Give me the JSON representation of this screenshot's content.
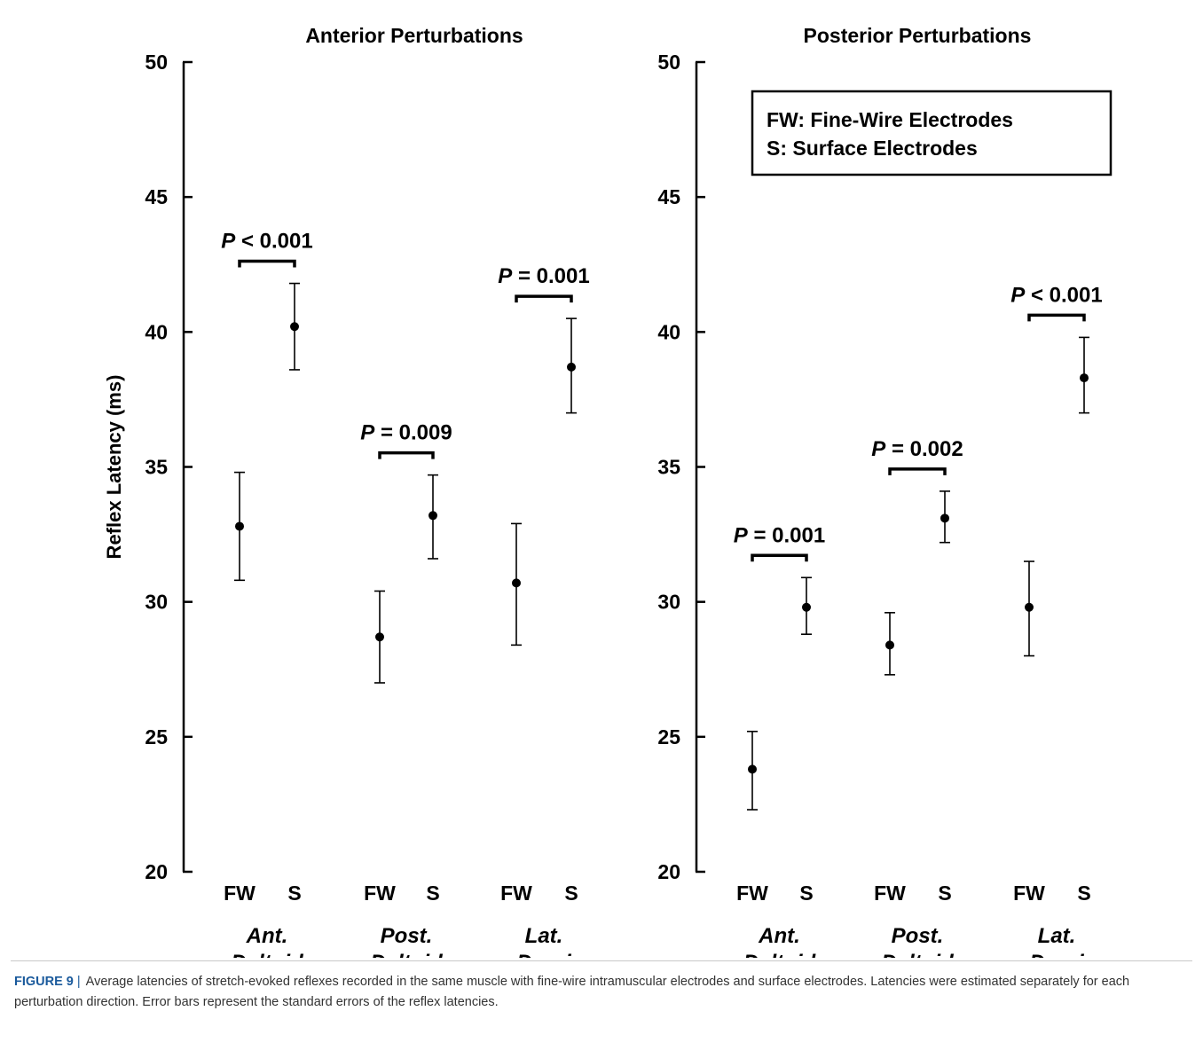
{
  "caption": {
    "label": "FIGURE 9",
    "separator": "|",
    "text": "Average latencies of stretch-evoked reflexes recorded in the same muscle with fine-wire intramuscular electrodes and surface electrodes. Latencies were estimated separately for each perturbation direction. Error bars represent the standard errors of the reflex latencies."
  },
  "chart_data": [
    {
      "type": "scatter",
      "title": "Anterior Perturbations",
      "ylabel": "Reflex Latency (ms)",
      "ylim": [
        20,
        50
      ],
      "yticks": [
        "20",
        "25",
        "30",
        "35",
        "40",
        "45",
        "50"
      ],
      "grid": false,
      "groups": [
        {
          "label": [
            "Ant.",
            "Deltoid"
          ],
          "points": [
            {
              "label": "FW",
              "mean": 32.8,
              "lower": 30.8,
              "upper": 34.8
            },
            {
              "label": "S",
              "mean": 40.2,
              "lower": 38.6,
              "upper": 41.8
            }
          ],
          "p_value": {
            "italic": "P",
            "rest": " < 0.001"
          }
        },
        {
          "label": [
            "Post.",
            "Deltoid"
          ],
          "points": [
            {
              "label": "FW",
              "mean": 28.7,
              "lower": 27.0,
              "upper": 30.4
            },
            {
              "label": "S",
              "mean": 33.2,
              "lower": 31.6,
              "upper": 34.7
            }
          ],
          "p_value": {
            "italic": "P",
            "rest": " = 0.009"
          }
        },
        {
          "label": [
            "Lat.",
            "Dorsi"
          ],
          "points": [
            {
              "label": "FW",
              "mean": 30.7,
              "lower": 28.4,
              "upper": 32.9
            },
            {
              "label": "S",
              "mean": 38.7,
              "lower": 37.0,
              "upper": 40.5
            }
          ],
          "p_value": {
            "italic": "P",
            "rest": " = 0.001"
          }
        }
      ]
    },
    {
      "type": "scatter",
      "title": "Posterior Perturbations",
      "ylabel": "",
      "ylim": [
        20,
        50
      ],
      "yticks": [
        "20",
        "25",
        "30",
        "35",
        "40",
        "45",
        "50"
      ],
      "grid": false,
      "legend": {
        "placement": "top-right",
        "lines": [
          "FW: Fine-Wire Electrodes",
          "S: Surface Electrodes"
        ]
      },
      "groups": [
        {
          "label": [
            "Ant.",
            "Deltoid"
          ],
          "points": [
            {
              "label": "FW",
              "mean": 23.8,
              "lower": 22.3,
              "upper": 25.2
            },
            {
              "label": "S",
              "mean": 29.8,
              "lower": 28.8,
              "upper": 30.9
            }
          ],
          "p_value": {
            "italic": "P",
            "rest": " = 0.001"
          }
        },
        {
          "label": [
            "Post.",
            "Deltoid"
          ],
          "points": [
            {
              "label": "FW",
              "mean": 28.4,
              "lower": 27.3,
              "upper": 29.6
            },
            {
              "label": "S",
              "mean": 33.1,
              "lower": 32.2,
              "upper": 34.1
            }
          ],
          "p_value": {
            "italic": "P",
            "rest": " = 0.002"
          }
        },
        {
          "label": [
            "Lat.",
            "Dorsi"
          ],
          "points": [
            {
              "label": "FW",
              "mean": 29.8,
              "lower": 28.0,
              "upper": 31.5
            },
            {
              "label": "S",
              "mean": 38.3,
              "lower": 37.0,
              "upper": 39.8
            }
          ],
          "p_value": {
            "italic": "P",
            "rest": " < 0.001"
          }
        }
      ]
    }
  ]
}
